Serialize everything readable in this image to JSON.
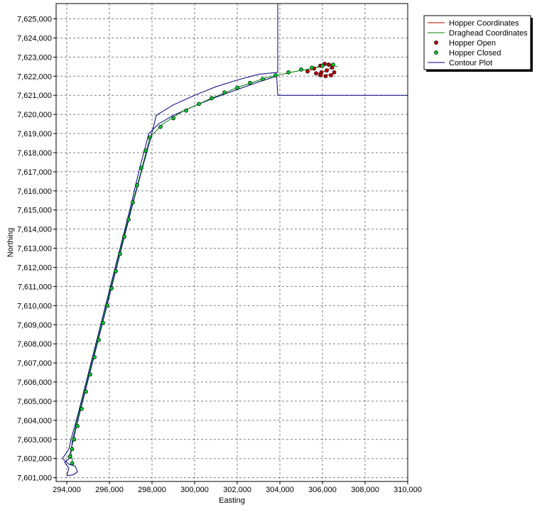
{
  "chart_data": {
    "type": "scatter",
    "xlabel": "Easting",
    "ylabel": "Northing",
    "xlim": [
      293500,
      310000
    ],
    "ylim": [
      7600800,
      7625800
    ],
    "grid": true,
    "legend_position": "top-right",
    "x_ticks": [
      {
        "value": 294000,
        "label": "294,000"
      },
      {
        "value": 296000,
        "label": "296,000"
      },
      {
        "value": 298000,
        "label": "298,000"
      },
      {
        "value": 300000,
        "label": "300,000"
      },
      {
        "value": 302000,
        "label": "302,000"
      },
      {
        "value": 304000,
        "label": "304,000"
      },
      {
        "value": 306000,
        "label": "306,000"
      },
      {
        "value": 308000,
        "label": "308,000"
      },
      {
        "value": 310000,
        "label": "310,000"
      }
    ],
    "y_ticks": [
      {
        "value": 7601000,
        "label": "7,601,000"
      },
      {
        "value": 7602000,
        "label": "7,602,000"
      },
      {
        "value": 7603000,
        "label": "7,603,000"
      },
      {
        "value": 7604000,
        "label": "7,604,000"
      },
      {
        "value": 7605000,
        "label": "7,605,000"
      },
      {
        "value": 7606000,
        "label": "7,606,000"
      },
      {
        "value": 7607000,
        "label": "7,607,000"
      },
      {
        "value": 7608000,
        "label": "7,608,000"
      },
      {
        "value": 7609000,
        "label": "7,609,000"
      },
      {
        "value": 7610000,
        "label": "7,610,000"
      },
      {
        "value": 7611000,
        "label": "7,611,000"
      },
      {
        "value": 7612000,
        "label": "7,612,000"
      },
      {
        "value": 7613000,
        "label": "7,613,000"
      },
      {
        "value": 7614000,
        "label": "7,614,000"
      },
      {
        "value": 7615000,
        "label": "7,615,000"
      },
      {
        "value": 7616000,
        "label": "7,616,000"
      },
      {
        "value": 7617000,
        "label": "7,617,000"
      },
      {
        "value": 7618000,
        "label": "7,618,000"
      },
      {
        "value": 7619000,
        "label": "7,619,000"
      },
      {
        "value": 7620000,
        "label": "7,620,000"
      },
      {
        "value": 7621000,
        "label": "7,621,000"
      },
      {
        "value": 7622000,
        "label": "7,622,000"
      },
      {
        "value": 7623000,
        "label": "7,623,000"
      },
      {
        "value": 7624000,
        "label": "7,624,000"
      },
      {
        "value": 7625000,
        "label": "7,625,000"
      }
    ],
    "series": [
      {
        "name": "Hopper Coordinates",
        "kind": "line",
        "color": "#c00000",
        "points": [
          [
            305400,
            7622300
          ],
          [
            305900,
            7622550
          ],
          [
            306300,
            7622700
          ],
          [
            306500,
            7622500
          ],
          [
            306200,
            7622300
          ],
          [
            305800,
            7622150
          ],
          [
            306000,
            7622050
          ],
          [
            306450,
            7622100
          ],
          [
            306600,
            7622250
          ]
        ]
      },
      {
        "name": "Draghead Coordinates",
        "kind": "line",
        "color": "#008000",
        "points": [
          [
            294300,
            7601650
          ],
          [
            294200,
            7602300
          ],
          [
            294250,
            7602900
          ],
          [
            294600,
            7604500
          ],
          [
            295100,
            7606700
          ],
          [
            295700,
            7609300
          ],
          [
            296300,
            7612000
          ],
          [
            296900,
            7614600
          ],
          [
            297500,
            7617100
          ],
          [
            297900,
            7618800
          ],
          [
            298500,
            7619500
          ],
          [
            299500,
            7620200
          ],
          [
            300700,
            7620800
          ],
          [
            302000,
            7621400
          ],
          [
            303300,
            7621900
          ],
          [
            304500,
            7622200
          ],
          [
            305500,
            7622400
          ],
          [
            306300,
            7622600
          ],
          [
            306700,
            7622500
          ]
        ]
      },
      {
        "name": "Hopper Open",
        "kind": "markers",
        "color": "#c00000",
        "points": [
          [
            305300,
            7622250
          ],
          [
            305600,
            7622400
          ],
          [
            305900,
            7622550
          ],
          [
            306100,
            7622650
          ],
          [
            306300,
            7622600
          ],
          [
            306450,
            7622450
          ],
          [
            306200,
            7622300
          ],
          [
            305950,
            7622200
          ],
          [
            305700,
            7622150
          ],
          [
            305900,
            7622050
          ],
          [
            306150,
            7622000
          ],
          [
            306400,
            7622050
          ],
          [
            306550,
            7622200
          ]
        ]
      },
      {
        "name": "Hopper Closed",
        "kind": "markers",
        "color": "#00cc33",
        "points": [
          [
            294250,
            7601750
          ],
          [
            294150,
            7602100
          ],
          [
            294250,
            7602500
          ],
          [
            294350,
            7603000
          ],
          [
            294500,
            7603700
          ],
          [
            294700,
            7604600
          ],
          [
            294900,
            7605500
          ],
          [
            295100,
            7606400
          ],
          [
            295300,
            7607300
          ],
          [
            295500,
            7608200
          ],
          [
            295700,
            7609100
          ],
          [
            295900,
            7610000
          ],
          [
            296100,
            7610900
          ],
          [
            296300,
            7611800
          ],
          [
            296500,
            7612700
          ],
          [
            296700,
            7613600
          ],
          [
            296900,
            7614500
          ],
          [
            297100,
            7615400
          ],
          [
            297300,
            7616300
          ],
          [
            297500,
            7617200
          ],
          [
            297700,
            7618100
          ],
          [
            297900,
            7618800
          ],
          [
            298400,
            7619350
          ],
          [
            299000,
            7619800
          ],
          [
            299600,
            7620200
          ],
          [
            300200,
            7620550
          ],
          [
            300800,
            7620850
          ],
          [
            301400,
            7621150
          ],
          [
            302000,
            7621400
          ],
          [
            302600,
            7621650
          ],
          [
            303200,
            7621850
          ],
          [
            303800,
            7622050
          ],
          [
            304400,
            7622200
          ],
          [
            305000,
            7622350
          ],
          [
            305500,
            7622450
          ],
          [
            306000,
            7622550
          ],
          [
            306500,
            7622600
          ]
        ]
      },
      {
        "name": "Contour Plot",
        "kind": "line",
        "color": "#000080",
        "points": [
          [
            294000,
            7601100
          ],
          [
            294300,
            7601150
          ],
          [
            294500,
            7601300
          ],
          [
            294400,
            7601600
          ],
          [
            294100,
            7601700
          ],
          [
            293800,
            7602000
          ],
          [
            294100,
            7602500
          ],
          [
            294200,
            7603000
          ],
          [
            294500,
            7604200
          ],
          [
            295000,
            7606400
          ],
          [
            295500,
            7608600
          ],
          [
            296000,
            7610800
          ],
          [
            296500,
            7613000
          ],
          [
            297000,
            7615200
          ],
          [
            297400,
            7617100
          ],
          [
            297850,
            7619000
          ],
          [
            298300,
            7619500
          ],
          [
            299000,
            7619950
          ],
          [
            300000,
            7620450
          ],
          [
            301000,
            7620900
          ],
          [
            302000,
            7621300
          ],
          [
            303000,
            7621700
          ],
          [
            303850,
            7622000
          ],
          [
            303900,
            7621000
          ],
          [
            310000,
            7621000
          ],
          [
            310000,
            7625800
          ],
          [
            303900,
            7625800
          ],
          [
            303900,
            7622200
          ],
          [
            303000,
            7622100
          ],
          [
            302000,
            7621800
          ],
          [
            301000,
            7621450
          ],
          [
            300000,
            7621000
          ],
          [
            299000,
            7620500
          ],
          [
            298200,
            7619950
          ],
          [
            297900,
            7618600
          ],
          [
            297500,
            7617000
          ],
          [
            297000,
            7614900
          ],
          [
            296500,
            7612700
          ],
          [
            296000,
            7610500
          ],
          [
            295500,
            7608300
          ],
          [
            295000,
            7606100
          ],
          [
            294500,
            7603900
          ],
          [
            294250,
            7602700
          ],
          [
            294100,
            7602000
          ],
          [
            293900,
            7601800
          ],
          [
            294100,
            7601500
          ],
          [
            294000,
            7601100
          ]
        ]
      }
    ]
  }
}
